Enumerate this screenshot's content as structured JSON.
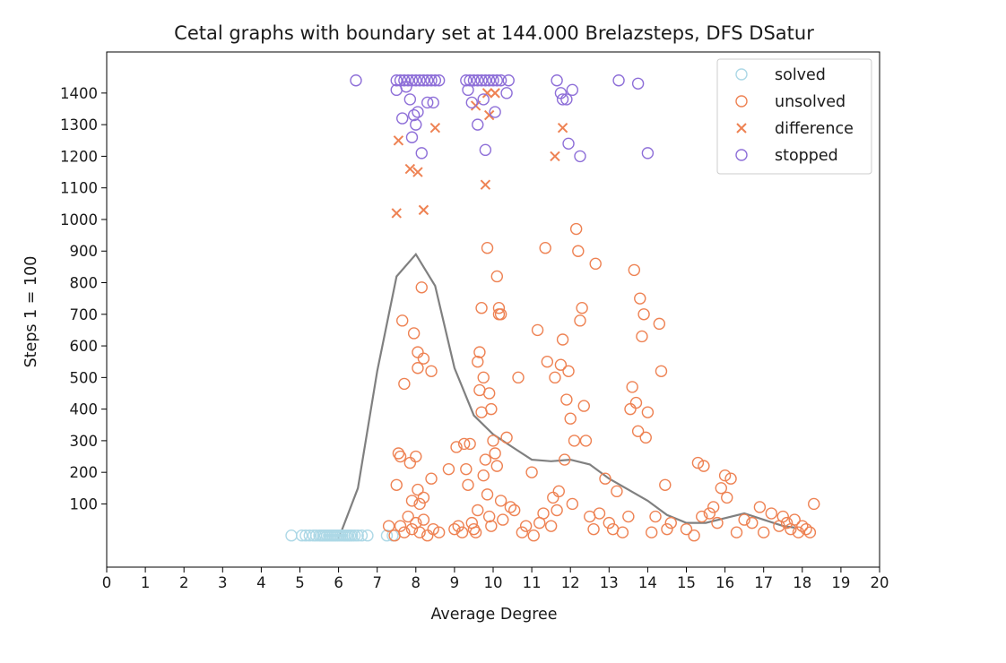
{
  "chart_data": {
    "type": "scatter",
    "title": "Cetal graphs with boundary set at 144.000 Brelazsteps, DFS DSatur",
    "xlabel": "Average Degree",
    "ylabel": "Steps 1 = 100",
    "xlim": [
      0,
      20
    ],
    "ylim": [
      -100,
      1530
    ],
    "xticks": [
      "0",
      "1",
      "2",
      "3",
      "4",
      "5",
      "6",
      "7",
      "8",
      "9",
      "10",
      "11",
      "12",
      "13",
      "14",
      "15",
      "16",
      "17",
      "18",
      "19",
      "20"
    ],
    "yticks": [
      "100",
      "200",
      "300",
      "400",
      "500",
      "600",
      "700",
      "800",
      "900",
      "1000",
      "1100",
      "1200",
      "1300",
      "1400"
    ],
    "grid": false,
    "legend_position": "top-right",
    "colors": {
      "solved": "#add8e6",
      "unsolved": "#ee8253",
      "difference": "#ee8253",
      "stopped": "#8e6fd8",
      "curve": "#808080"
    },
    "series": [
      {
        "name": "solved",
        "marker": "hollow-circle",
        "points": [
          [
            4.78,
            0
          ],
          [
            5.05,
            0
          ],
          [
            5.15,
            0
          ],
          [
            5.25,
            0
          ],
          [
            5.35,
            0
          ],
          [
            5.42,
            0
          ],
          [
            5.5,
            0
          ],
          [
            5.55,
            0
          ],
          [
            5.6,
            0
          ],
          [
            5.65,
            0
          ],
          [
            5.7,
            0
          ],
          [
            5.75,
            0
          ],
          [
            5.8,
            0
          ],
          [
            5.85,
            0
          ],
          [
            5.9,
            0
          ],
          [
            5.95,
            0
          ],
          [
            6.0,
            0
          ],
          [
            6.05,
            0
          ],
          [
            6.1,
            0
          ],
          [
            6.15,
            0
          ],
          [
            6.2,
            0
          ],
          [
            6.25,
            0
          ],
          [
            6.3,
            0
          ],
          [
            6.35,
            0
          ],
          [
            6.42,
            0
          ],
          [
            6.5,
            0
          ],
          [
            6.6,
            0
          ],
          [
            6.75,
            0
          ],
          [
            7.25,
            0
          ],
          [
            7.4,
            0
          ]
        ]
      },
      {
        "name": "unsolved",
        "marker": "hollow-circle",
        "points": [
          [
            7.3,
            30
          ],
          [
            7.45,
            0
          ],
          [
            7.6,
            30
          ],
          [
            7.7,
            10
          ],
          [
            7.8,
            60
          ],
          [
            7.9,
            20
          ],
          [
            8.0,
            40
          ],
          [
            8.1,
            10
          ],
          [
            8.2,
            50
          ],
          [
            8.3,
            0
          ],
          [
            8.45,
            20
          ],
          [
            8.6,
            10
          ],
          [
            7.5,
            160
          ],
          [
            7.55,
            260
          ],
          [
            7.6,
            250
          ],
          [
            7.85,
            230
          ],
          [
            7.9,
            110
          ],
          [
            8.0,
            250
          ],
          [
            8.05,
            145
          ],
          [
            8.1,
            100
          ],
          [
            8.2,
            120
          ],
          [
            8.4,
            180
          ],
          [
            7.65,
            680
          ],
          [
            7.7,
            480
          ],
          [
            7.95,
            640
          ],
          [
            8.05,
            580
          ],
          [
            8.05,
            530
          ],
          [
            8.15,
            785
          ],
          [
            8.2,
            560
          ],
          [
            8.4,
            520
          ],
          [
            8.85,
            210
          ],
          [
            9.0,
            20
          ],
          [
            9.05,
            280
          ],
          [
            9.1,
            30
          ],
          [
            9.2,
            10
          ],
          [
            9.25,
            290
          ],
          [
            9.3,
            210
          ],
          [
            9.35,
            160
          ],
          [
            9.4,
            290
          ],
          [
            9.45,
            40
          ],
          [
            9.5,
            20
          ],
          [
            9.55,
            10
          ],
          [
            9.6,
            80
          ],
          [
            9.65,
            580
          ],
          [
            9.7,
            720
          ],
          [
            9.75,
            190
          ],
          [
            9.8,
            240
          ],
          [
            9.85,
            130
          ],
          [
            9.9,
            60
          ],
          [
            9.95,
            30
          ],
          [
            10.0,
            300
          ],
          [
            10.05,
            260
          ],
          [
            10.1,
            220
          ],
          [
            10.15,
            700
          ],
          [
            10.2,
            110
          ],
          [
            10.25,
            50
          ],
          [
            10.35,
            310
          ],
          [
            10.45,
            90
          ],
          [
            10.55,
            80
          ],
          [
            9.6,
            550
          ],
          [
            9.65,
            460
          ],
          [
            9.7,
            390
          ],
          [
            9.75,
            500
          ],
          [
            9.85,
            910
          ],
          [
            9.9,
            450
          ],
          [
            9.95,
            400
          ],
          [
            10.1,
            820
          ],
          [
            10.2,
            700
          ],
          [
            10.15,
            720
          ],
          [
            10.65,
            500
          ],
          [
            10.75,
            10
          ],
          [
            10.85,
            30
          ],
          [
            11.0,
            200
          ],
          [
            11.05,
            0
          ],
          [
            11.15,
            650
          ],
          [
            11.2,
            40
          ],
          [
            11.3,
            70
          ],
          [
            11.35,
            910
          ],
          [
            11.4,
            550
          ],
          [
            11.5,
            30
          ],
          [
            11.55,
            120
          ],
          [
            11.6,
            500
          ],
          [
            11.65,
            80
          ],
          [
            11.7,
            140
          ],
          [
            11.75,
            540
          ],
          [
            11.8,
            620
          ],
          [
            11.85,
            240
          ],
          [
            11.9,
            430
          ],
          [
            11.95,
            520
          ],
          [
            12.0,
            370
          ],
          [
            12.05,
            100
          ],
          [
            12.1,
            300
          ],
          [
            12.15,
            970
          ],
          [
            12.2,
            900
          ],
          [
            12.25,
            680
          ],
          [
            12.3,
            720
          ],
          [
            12.35,
            410
          ],
          [
            12.4,
            300
          ],
          [
            12.5,
            60
          ],
          [
            12.6,
            20
          ],
          [
            12.65,
            860
          ],
          [
            12.75,
            70
          ],
          [
            12.9,
            180
          ],
          [
            13.0,
            40
          ],
          [
            13.1,
            20
          ],
          [
            13.2,
            140
          ],
          [
            13.35,
            10
          ],
          [
            13.5,
            60
          ],
          [
            13.55,
            400
          ],
          [
            13.6,
            470
          ],
          [
            13.65,
            840
          ],
          [
            13.7,
            420
          ],
          [
            13.75,
            330
          ],
          [
            13.8,
            750
          ],
          [
            13.85,
            630
          ],
          [
            13.9,
            700
          ],
          [
            13.95,
            310
          ],
          [
            14.0,
            390
          ],
          [
            14.1,
            10
          ],
          [
            14.2,
            60
          ],
          [
            14.3,
            670
          ],
          [
            14.35,
            520
          ],
          [
            14.45,
            160
          ],
          [
            14.5,
            20
          ],
          [
            14.6,
            40
          ],
          [
            15.0,
            20
          ],
          [
            15.2,
            0
          ],
          [
            15.3,
            230
          ],
          [
            15.4,
            60
          ],
          [
            15.45,
            220
          ],
          [
            15.6,
            70
          ],
          [
            15.7,
            90
          ],
          [
            15.8,
            40
          ],
          [
            15.9,
            150
          ],
          [
            16.0,
            190
          ],
          [
            16.05,
            120
          ],
          [
            16.15,
            180
          ],
          [
            16.3,
            10
          ],
          [
            16.5,
            50
          ],
          [
            16.7,
            40
          ],
          [
            16.9,
            90
          ],
          [
            17.0,
            10
          ],
          [
            17.2,
            70
          ],
          [
            17.4,
            30
          ],
          [
            17.5,
            60
          ],
          [
            17.6,
            40
          ],
          [
            17.7,
            20
          ],
          [
            17.8,
            50
          ],
          [
            17.9,
            10
          ],
          [
            18.0,
            30
          ],
          [
            18.1,
            20
          ],
          [
            18.2,
            10
          ],
          [
            18.3,
            100
          ]
        ]
      },
      {
        "name": "difference",
        "marker": "x",
        "points": [
          [
            7.55,
            1250
          ],
          [
            7.5,
            1020
          ],
          [
            7.85,
            1160
          ],
          [
            8.05,
            1150
          ],
          [
            8.2,
            1030
          ],
          [
            8.5,
            1290
          ],
          [
            9.55,
            1360
          ],
          [
            9.8,
            1110
          ],
          [
            9.9,
            1330
          ],
          [
            10.05,
            1400
          ],
          [
            9.85,
            1400
          ],
          [
            11.6,
            1200
          ],
          [
            11.8,
            1290
          ]
        ]
      },
      {
        "name": "stopped",
        "marker": "hollow-circle",
        "points": [
          [
            6.45,
            1440
          ],
          [
            7.5,
            1440
          ],
          [
            7.6,
            1440
          ],
          [
            7.7,
            1440
          ],
          [
            7.8,
            1440
          ],
          [
            7.9,
            1440
          ],
          [
            8.0,
            1440
          ],
          [
            8.1,
            1440
          ],
          [
            8.2,
            1440
          ],
          [
            8.3,
            1440
          ],
          [
            8.4,
            1440
          ],
          [
            8.5,
            1440
          ],
          [
            8.6,
            1440
          ],
          [
            7.5,
            1410
          ],
          [
            7.65,
            1320
          ],
          [
            7.75,
            1420
          ],
          [
            7.85,
            1380
          ],
          [
            7.95,
            1330
          ],
          [
            8.0,
            1300
          ],
          [
            8.05,
            1340
          ],
          [
            8.15,
            1210
          ],
          [
            8.3,
            1370
          ],
          [
            8.45,
            1370
          ],
          [
            7.9,
            1260
          ],
          [
            9.3,
            1440
          ],
          [
            9.4,
            1440
          ],
          [
            9.5,
            1440
          ],
          [
            9.6,
            1440
          ],
          [
            9.7,
            1440
          ],
          [
            9.8,
            1440
          ],
          [
            9.9,
            1440
          ],
          [
            10.0,
            1440
          ],
          [
            10.1,
            1440
          ],
          [
            10.2,
            1440
          ],
          [
            10.4,
            1440
          ],
          [
            9.35,
            1410
          ],
          [
            9.45,
            1370
          ],
          [
            9.6,
            1300
          ],
          [
            9.75,
            1380
          ],
          [
            9.8,
            1220
          ],
          [
            10.05,
            1340
          ],
          [
            10.35,
            1400
          ],
          [
            11.65,
            1440
          ],
          [
            11.75,
            1400
          ],
          [
            11.8,
            1380
          ],
          [
            11.9,
            1380
          ],
          [
            12.05,
            1410
          ],
          [
            11.95,
            1240
          ],
          [
            12.25,
            1200
          ],
          [
            13.25,
            1440
          ],
          [
            13.75,
            1430
          ],
          [
            14.0,
            1210
          ]
        ]
      },
      {
        "name": "trend",
        "marker": "line",
        "points": [
          [
            6.0,
            -10
          ],
          [
            6.5,
            150
          ],
          [
            7.0,
            520
          ],
          [
            7.5,
            820
          ],
          [
            8.0,
            890
          ],
          [
            8.5,
            790
          ],
          [
            9.0,
            530
          ],
          [
            9.5,
            380
          ],
          [
            10.0,
            320
          ],
          [
            10.5,
            280
          ],
          [
            11.0,
            240
          ],
          [
            11.5,
            235
          ],
          [
            12.0,
            240
          ],
          [
            12.5,
            225
          ],
          [
            13.0,
            180
          ],
          [
            13.5,
            145
          ],
          [
            14.0,
            110
          ],
          [
            14.5,
            65
          ],
          [
            15.0,
            40
          ],
          [
            15.5,
            40
          ],
          [
            16.0,
            55
          ],
          [
            16.5,
            70
          ],
          [
            17.0,
            50
          ],
          [
            17.5,
            30
          ],
          [
            17.8,
            25
          ]
        ]
      }
    ]
  }
}
